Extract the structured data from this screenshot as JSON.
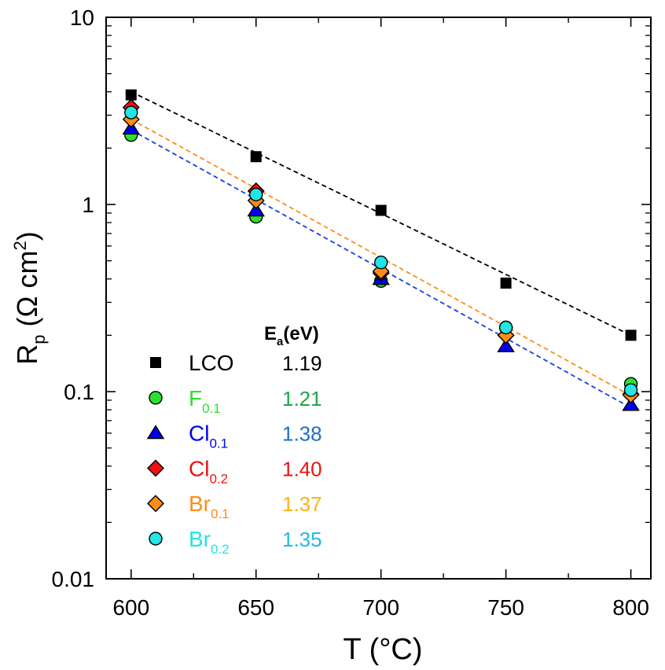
{
  "chart_data": {
    "type": "scatter",
    "title": "",
    "xlabel": "T (°C)",
    "ylabel": {
      "main": "R",
      "sub": "p",
      "unit": " (Ω cm",
      "sup": "2",
      "close": ")"
    },
    "x_scale": "linear",
    "y_scale": "log",
    "xlim": [
      590,
      808
    ],
    "ylim": [
      0.01,
      10
    ],
    "x_ticks": [
      600,
      650,
      700,
      750,
      800
    ],
    "x_tick_labels": [
      "600",
      "650",
      "700",
      "750",
      "800"
    ],
    "y_ticks": [
      0.01,
      0.1,
      1,
      10
    ],
    "y_tick_labels": [
      "0.01",
      "0.1",
      "1",
      "10"
    ],
    "x": [
      600,
      650,
      700,
      750,
      800
    ],
    "legend_position": "bottom-left",
    "legend_header": {
      "main": "E",
      "sub": "a",
      "rest": "(eV)"
    },
    "series": [
      {
        "name": "LCO",
        "label_main": "LCO",
        "label_sub": "",
        "marker": "square",
        "color": "#000000",
        "ea": "1.19",
        "ea_color": "#000000",
        "values": [
          3.85,
          1.8,
          0.93,
          0.38,
          0.2
        ],
        "fit": [
          4.0,
          0.2
        ]
      },
      {
        "name": "F0.1",
        "label_main": "F",
        "label_sub": "0.1",
        "marker": "circle",
        "color": "#2ee02e",
        "ea": "1.21",
        "ea_color": "#1fa64a",
        "values": [
          2.35,
          0.86,
          0.39,
          0.22,
          0.11
        ],
        "fit": null
      },
      {
        "name": "Cl0.1",
        "label_main": "Cl",
        "label_sub": "0.1",
        "marker": "triangle",
        "color": "#0000ee",
        "ea": "1.38",
        "ea_color": "#1f6fc6",
        "values": [
          2.55,
          0.93,
          0.4,
          0.175,
          0.085
        ],
        "fit": [
          2.5,
          0.082
        ]
      },
      {
        "name": "Cl0.2",
        "label_main": "Cl",
        "label_sub": "0.2",
        "marker": "diamond",
        "color": "#ee1111",
        "ea": "1.40",
        "ea_color": "#ee1111",
        "values": [
          3.3,
          1.18,
          0.43,
          0.2,
          0.097
        ],
        "fit": null
      },
      {
        "name": "Br0.1",
        "label_main": "Br",
        "label_sub": "0.1",
        "marker": "diamond",
        "color": "#ff8c1a",
        "ea": "1.37",
        "ea_color": "#ffb01a",
        "values": [
          2.85,
          1.05,
          0.44,
          0.2,
          0.096
        ],
        "fit": [
          2.85,
          0.095
        ]
      },
      {
        "name": "Br0.2",
        "label_main": "Br",
        "label_sub": "0.2",
        "marker": "circle",
        "color": "#22e5e5",
        "ea": "1.35",
        "ea_color": "#22b8e5",
        "values": [
          3.1,
          1.13,
          0.49,
          0.22,
          0.102
        ],
        "fit": null
      }
    ],
    "fit_line_colors": {
      "LCO": "#000000",
      "Cl0.1": "#1a3fe0",
      "Br0.1": "#ff8c1a"
    }
  }
}
